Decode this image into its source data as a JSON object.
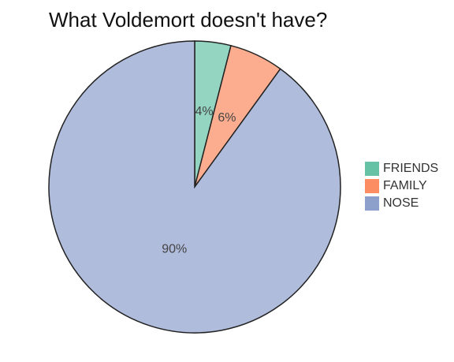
{
  "chart_data": {
    "type": "pie",
    "title": "What Voldemort doesn't have?",
    "slices": [
      {
        "label": "FRIENDS",
        "value": 4,
        "text": "4%",
        "color": "#66c2a5",
        "fill": "#93d5c1"
      },
      {
        "label": "FAMILY",
        "value": 6,
        "text": "6%",
        "color": "#fc8d62",
        "fill": "#fcad8f"
      },
      {
        "label": "NOSE",
        "value": 90,
        "text": "90%",
        "color": "#8da0cb",
        "fill": "#b0bcdc"
      }
    ],
    "legend_position": "right"
  }
}
